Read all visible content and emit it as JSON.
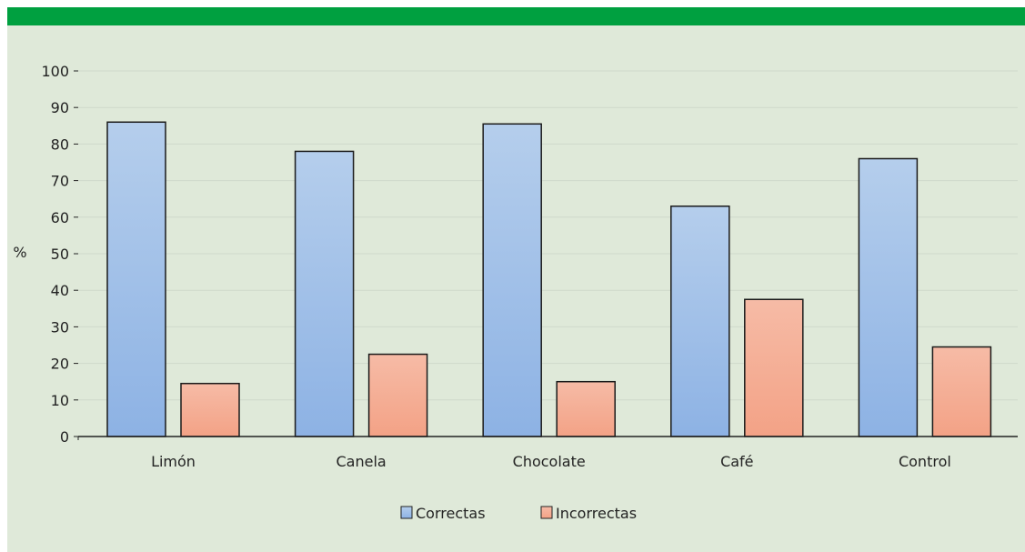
{
  "chart_data": {
    "type": "bar",
    "categories": [
      "Limón",
      "Canela",
      "Chocolate",
      "Café",
      "Control"
    ],
    "series": [
      {
        "name": "Correctas",
        "values": [
          86,
          78,
          85.5,
          63,
          76
        ],
        "color": "#9bbbe8"
      },
      {
        "name": "Incorrectas",
        "values": [
          14.5,
          22.5,
          15,
          37.5,
          24.5
        ],
        "color": "#f4ad93"
      }
    ],
    "ylabel": "%",
    "xlabel": "",
    "title": "",
    "ylim": [
      0,
      100
    ],
    "yticks": [
      0,
      10,
      20,
      30,
      40,
      50,
      60,
      70,
      80,
      90,
      100
    ],
    "grid": true,
    "legend": "bottom-center"
  },
  "colors": {
    "header_bar": "#00a040",
    "panel_background": "#dfe9d9",
    "gridline": "#cfd9cb"
  }
}
